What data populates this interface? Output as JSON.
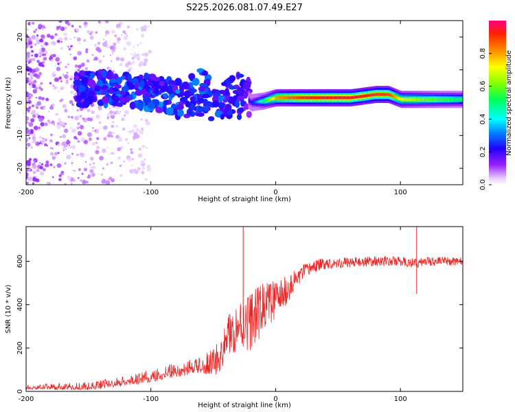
{
  "title": "S225.2026.081.07.49.E27",
  "chart_data": [
    {
      "type": "heatmap",
      "name": "spectrogram",
      "xlabel": "Height of straight line (km)",
      "ylabel": "Frequency (Hz)",
      "xlim": [
        -200,
        150
      ],
      "ylim": [
        -25,
        25
      ],
      "xticks": [
        -200,
        -100,
        0,
        100
      ],
      "yticks": [
        -20,
        -10,
        0,
        10,
        20
      ],
      "colorbar": {
        "label": "Normalized spectral amplitude",
        "range": [
          0,
          1
        ],
        "ticks": [
          "0.0",
          "0.2",
          "0.4",
          "0.6",
          "0.8"
        ]
      },
      "ridge": {
        "description_points_x_km": [
          -155,
          -140,
          -120,
          -100,
          -80,
          -60,
          -45,
          -30,
          -20,
          -10,
          0,
          20,
          40,
          60,
          80,
          90,
          100,
          120,
          150
        ],
        "center_freq_hz": [
          4,
          4.5,
          4,
          3,
          1.5,
          3,
          0,
          3,
          0,
          0.5,
          1.5,
          1.5,
          1.5,
          1.5,
          2.5,
          2.5,
          1,
          1,
          1
        ],
        "peak_amplitude": [
          0.25,
          0.3,
          0.3,
          0.3,
          0.3,
          0.3,
          0.3,
          0.25,
          0.2,
          0.5,
          0.8,
          0.9,
          0.95,
          0.95,
          0.9,
          0.9,
          0.7,
          0.6,
          0.5
        ]
      }
    },
    {
      "type": "line",
      "name": "snr",
      "xlabel": "Height of straight line (km)",
      "ylabel": "SNR (10 * v/v)",
      "xlim": [
        -200,
        150
      ],
      "ylim": [
        0,
        760
      ],
      "xticks": [
        -200,
        -100,
        0,
        100
      ],
      "yticks": [
        0,
        200,
        400,
        600
      ],
      "color": "#ee2222",
      "trend": {
        "x": [
          -200,
          -150,
          -120,
          -100,
          -80,
          -60,
          -45,
          -40,
          -30,
          -20,
          -15,
          -10,
          -5,
          0,
          10,
          20,
          30,
          40,
          60,
          80,
          100,
          112,
          120,
          150
        ],
        "y": [
          20,
          25,
          50,
          70,
          100,
          120,
          150,
          250,
          300,
          330,
          350,
          390,
          410,
          420,
          470,
          540,
          575,
          590,
          595,
          600,
          600,
          590,
          600,
          600
        ]
      },
      "noise_amplitude": {
        "x": [
          -200,
          -120,
          -60,
          -45,
          -20,
          0,
          20,
          40,
          150
        ],
        "amp": [
          10,
          25,
          40,
          80,
          140,
          90,
          40,
          25,
          20
        ]
      },
      "spikes": [
        {
          "x": -26,
          "y": 760
        },
        {
          "x": 113,
          "y": 760
        },
        {
          "x": 113,
          "y": 450
        }
      ]
    }
  ]
}
